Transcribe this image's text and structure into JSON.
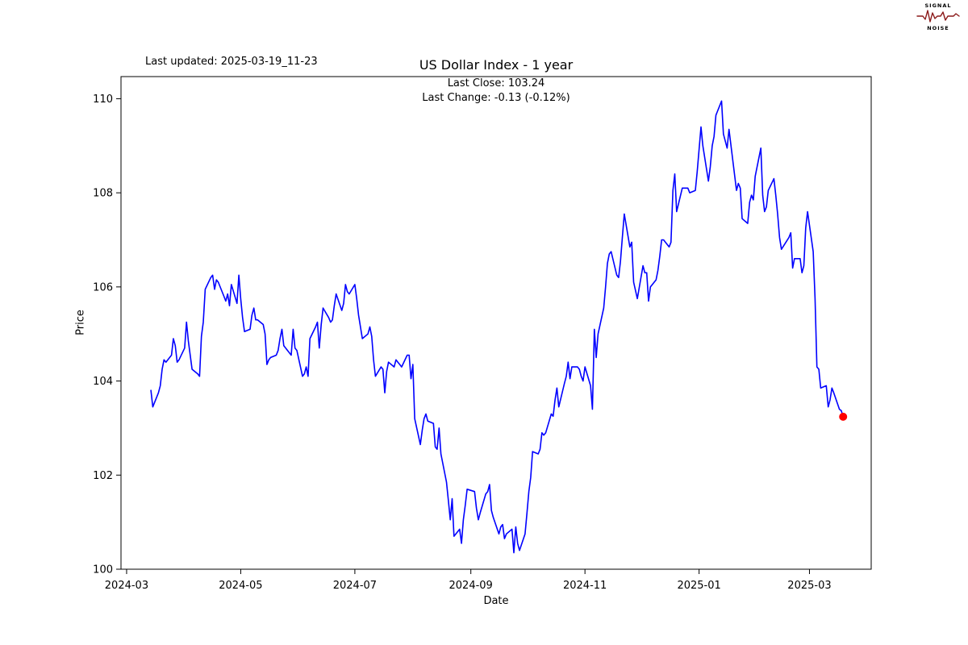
{
  "header": {
    "last_updated": "Last updated: 2025-03-19_11-23",
    "logo": {
      "top": "SIGNAL",
      "bottom": "NOISE",
      "color": "#8b1a1a"
    }
  },
  "chart_data": {
    "type": "line",
    "title": "US Dollar Index - 1 year",
    "annotations": [
      "Last Close: 103.24",
      "Last Change: -0.13 (-0.12%)"
    ],
    "xlabel": "Date",
    "ylabel": "Price",
    "ylim": [
      100,
      110.47
    ],
    "xlim": [
      "2024-02-27",
      "2025-04-03"
    ],
    "y_ticks": [
      100,
      102,
      104,
      106,
      108,
      110
    ],
    "x_ticks": [
      {
        "label": "2024-03",
        "date": "2024-03-01"
      },
      {
        "label": "2024-05",
        "date": "2024-05-01"
      },
      {
        "label": "2024-07",
        "date": "2024-07-01"
      },
      {
        "label": "2024-09",
        "date": "2024-09-01"
      },
      {
        "label": "2024-11",
        "date": "2024-11-01"
      },
      {
        "label": "2025-01",
        "date": "2025-01-01"
      },
      {
        "label": "2025-03",
        "date": "2025-03-01"
      }
    ],
    "grid": false,
    "legend": "none",
    "line_color": "#0000ff",
    "marker_color": "#ff0000",
    "last_close": 103.24,
    "last_change": -0.13,
    "last_change_pct": -0.12,
    "series": [
      {
        "name": "US Dollar Index",
        "points": [
          [
            "2024-03-14",
            103.8
          ],
          [
            "2024-03-15",
            103.45
          ],
          [
            "2024-03-18",
            103.75
          ],
          [
            "2024-03-19",
            103.9
          ],
          [
            "2024-03-20",
            104.25
          ],
          [
            "2024-03-21",
            104.45
          ],
          [
            "2024-03-22",
            104.4
          ],
          [
            "2024-03-25",
            104.55
          ],
          [
            "2024-03-26",
            104.9
          ],
          [
            "2024-03-27",
            104.75
          ],
          [
            "2024-03-28",
            104.4
          ],
          [
            "2024-03-29",
            104.45
          ],
          [
            "2024-04-01",
            104.7
          ],
          [
            "2024-04-02",
            105.25
          ],
          [
            "2024-04-03",
            104.85
          ],
          [
            "2024-04-04",
            104.55
          ],
          [
            "2024-04-05",
            104.25
          ],
          [
            "2024-04-08",
            104.15
          ],
          [
            "2024-04-09",
            104.1
          ],
          [
            "2024-04-10",
            104.95
          ],
          [
            "2024-04-11",
            105.25
          ],
          [
            "2024-04-12",
            105.95
          ],
          [
            "2024-04-15",
            106.2
          ],
          [
            "2024-04-16",
            106.25
          ],
          [
            "2024-04-17",
            105.95
          ],
          [
            "2024-04-18",
            106.15
          ],
          [
            "2024-04-19",
            106.1
          ],
          [
            "2024-04-22",
            105.8
          ],
          [
            "2024-04-23",
            105.7
          ],
          [
            "2024-04-24",
            105.85
          ],
          [
            "2024-04-25",
            105.6
          ],
          [
            "2024-04-26",
            106.05
          ],
          [
            "2024-04-29",
            105.65
          ],
          [
            "2024-04-30",
            106.25
          ],
          [
            "2024-05-01",
            105.75
          ],
          [
            "2024-05-02",
            105.35
          ],
          [
            "2024-05-03",
            105.05
          ],
          [
            "2024-05-06",
            105.1
          ],
          [
            "2024-05-07",
            105.4
          ],
          [
            "2024-05-08",
            105.55
          ],
          [
            "2024-05-09",
            105.3
          ],
          [
            "2024-05-10",
            105.3
          ],
          [
            "2024-05-13",
            105.2
          ],
          [
            "2024-05-14",
            105.0
          ],
          [
            "2024-05-15",
            104.35
          ],
          [
            "2024-05-16",
            104.45
          ],
          [
            "2024-05-17",
            104.5
          ],
          [
            "2024-05-20",
            104.55
          ],
          [
            "2024-05-21",
            104.65
          ],
          [
            "2024-05-22",
            104.9
          ],
          [
            "2024-05-23",
            105.1
          ],
          [
            "2024-05-24",
            104.75
          ],
          [
            "2024-05-28",
            104.55
          ],
          [
            "2024-05-29",
            105.1
          ],
          [
            "2024-05-30",
            104.7
          ],
          [
            "2024-05-31",
            104.65
          ],
          [
            "2024-06-03",
            104.1
          ],
          [
            "2024-06-04",
            104.15
          ],
          [
            "2024-06-05",
            104.3
          ],
          [
            "2024-06-06",
            104.1
          ],
          [
            "2024-06-07",
            104.9
          ],
          [
            "2024-06-10",
            105.15
          ],
          [
            "2024-06-11",
            105.25
          ],
          [
            "2024-06-12",
            104.7
          ],
          [
            "2024-06-13",
            105.2
          ],
          [
            "2024-06-14",
            105.55
          ],
          [
            "2024-06-17",
            105.35
          ],
          [
            "2024-06-18",
            105.25
          ],
          [
            "2024-06-19",
            105.3
          ],
          [
            "2024-06-20",
            105.6
          ],
          [
            "2024-06-21",
            105.85
          ],
          [
            "2024-06-24",
            105.5
          ],
          [
            "2024-06-25",
            105.65
          ],
          [
            "2024-06-26",
            106.05
          ],
          [
            "2024-06-27",
            105.9
          ],
          [
            "2024-06-28",
            105.85
          ],
          [
            "2024-07-01",
            106.05
          ],
          [
            "2024-07-02",
            105.75
          ],
          [
            "2024-07-03",
            105.4
          ],
          [
            "2024-07-05",
            104.9
          ],
          [
            "2024-07-08",
            105.0
          ],
          [
            "2024-07-09",
            105.15
          ],
          [
            "2024-07-10",
            104.95
          ],
          [
            "2024-07-11",
            104.45
          ],
          [
            "2024-07-12",
            104.1
          ],
          [
            "2024-07-15",
            104.3
          ],
          [
            "2024-07-16",
            104.25
          ],
          [
            "2024-07-17",
            103.75
          ],
          [
            "2024-07-18",
            104.2
          ],
          [
            "2024-07-19",
            104.4
          ],
          [
            "2024-07-22",
            104.3
          ],
          [
            "2024-07-23",
            104.45
          ],
          [
            "2024-07-24",
            104.4
          ],
          [
            "2024-07-25",
            104.35
          ],
          [
            "2024-07-26",
            104.3
          ],
          [
            "2024-07-29",
            104.55
          ],
          [
            "2024-07-30",
            104.55
          ],
          [
            "2024-07-31",
            104.05
          ],
          [
            "2024-08-01",
            104.35
          ],
          [
            "2024-08-02",
            103.2
          ],
          [
            "2024-08-05",
            102.65
          ],
          [
            "2024-08-06",
            102.95
          ],
          [
            "2024-08-07",
            103.2
          ],
          [
            "2024-08-08",
            103.3
          ],
          [
            "2024-08-09",
            103.15
          ],
          [
            "2024-08-12",
            103.1
          ],
          [
            "2024-08-13",
            102.6
          ],
          [
            "2024-08-14",
            102.55
          ],
          [
            "2024-08-15",
            103.0
          ],
          [
            "2024-08-16",
            102.45
          ],
          [
            "2024-08-19",
            101.85
          ],
          [
            "2024-08-20",
            101.45
          ],
          [
            "2024-08-21",
            101.05
          ],
          [
            "2024-08-22",
            101.5
          ],
          [
            "2024-08-23",
            100.7
          ],
          [
            "2024-08-26",
            100.85
          ],
          [
            "2024-08-27",
            100.55
          ],
          [
            "2024-08-28",
            101.05
          ],
          [
            "2024-08-29",
            101.35
          ],
          [
            "2024-08-30",
            101.7
          ],
          [
            "2024-09-03",
            101.65
          ],
          [
            "2024-09-04",
            101.3
          ],
          [
            "2024-09-05",
            101.05
          ],
          [
            "2024-09-06",
            101.2
          ],
          [
            "2024-09-09",
            101.6
          ],
          [
            "2024-09-10",
            101.65
          ],
          [
            "2024-09-11",
            101.8
          ],
          [
            "2024-09-12",
            101.25
          ],
          [
            "2024-09-13",
            101.1
          ],
          [
            "2024-09-16",
            100.75
          ],
          [
            "2024-09-17",
            100.9
          ],
          [
            "2024-09-18",
            100.95
          ],
          [
            "2024-09-19",
            100.65
          ],
          [
            "2024-09-20",
            100.75
          ],
          [
            "2024-09-23",
            100.85
          ],
          [
            "2024-09-24",
            100.35
          ],
          [
            "2024-09-25",
            100.9
          ],
          [
            "2024-09-26",
            100.55
          ],
          [
            "2024-09-27",
            100.4
          ],
          [
            "2024-09-30",
            100.75
          ],
          [
            "2024-10-01",
            101.2
          ],
          [
            "2024-10-02",
            101.65
          ],
          [
            "2024-10-03",
            101.95
          ],
          [
            "2024-10-04",
            102.5
          ],
          [
            "2024-10-07",
            102.45
          ],
          [
            "2024-10-08",
            102.55
          ],
          [
            "2024-10-09",
            102.9
          ],
          [
            "2024-10-10",
            102.85
          ],
          [
            "2024-10-11",
            102.9
          ],
          [
            "2024-10-14",
            103.3
          ],
          [
            "2024-10-15",
            103.25
          ],
          [
            "2024-10-16",
            103.6
          ],
          [
            "2024-10-17",
            103.85
          ],
          [
            "2024-10-18",
            103.45
          ],
          [
            "2024-10-21",
            103.95
          ],
          [
            "2024-10-22",
            104.1
          ],
          [
            "2024-10-23",
            104.4
          ],
          [
            "2024-10-24",
            104.05
          ],
          [
            "2024-10-25",
            104.3
          ],
          [
            "2024-10-28",
            104.3
          ],
          [
            "2024-10-29",
            104.25
          ],
          [
            "2024-10-30",
            104.1
          ],
          [
            "2024-10-31",
            104.0
          ],
          [
            "2024-11-01",
            104.3
          ],
          [
            "2024-11-04",
            103.9
          ],
          [
            "2024-11-05",
            103.4
          ],
          [
            "2024-11-06",
            105.1
          ],
          [
            "2024-11-07",
            104.5
          ],
          [
            "2024-11-08",
            105.0
          ],
          [
            "2024-11-11",
            105.55
          ],
          [
            "2024-11-12",
            106.0
          ],
          [
            "2024-11-13",
            106.5
          ],
          [
            "2024-11-14",
            106.7
          ],
          [
            "2024-11-15",
            106.75
          ],
          [
            "2024-11-18",
            106.25
          ],
          [
            "2024-11-19",
            106.2
          ],
          [
            "2024-11-20",
            106.55
          ],
          [
            "2024-11-21",
            107.05
          ],
          [
            "2024-11-22",
            107.55
          ],
          [
            "2024-11-25",
            106.85
          ],
          [
            "2024-11-26",
            106.95
          ],
          [
            "2024-11-27",
            106.1
          ],
          [
            "2024-11-29",
            105.75
          ],
          [
            "2024-12-02",
            106.45
          ],
          [
            "2024-12-03",
            106.3
          ],
          [
            "2024-12-04",
            106.3
          ],
          [
            "2024-12-05",
            105.7
          ],
          [
            "2024-12-06",
            106.0
          ],
          [
            "2024-12-09",
            106.15
          ],
          [
            "2024-12-10",
            106.35
          ],
          [
            "2024-12-11",
            106.65
          ],
          [
            "2024-12-12",
            107.0
          ],
          [
            "2024-12-13",
            107.0
          ],
          [
            "2024-12-16",
            106.85
          ],
          [
            "2024-12-17",
            106.95
          ],
          [
            "2024-12-18",
            108.05
          ],
          [
            "2024-12-19",
            108.4
          ],
          [
            "2024-12-20",
            107.6
          ],
          [
            "2024-12-23",
            108.1
          ],
          [
            "2024-12-24",
            108.1
          ],
          [
            "2024-12-26",
            108.1
          ],
          [
            "2024-12-27",
            108.0
          ],
          [
            "2024-12-30",
            108.05
          ],
          [
            "2024-12-31",
            108.45
          ],
          [
            "2025-01-02",
            109.4
          ],
          [
            "2025-01-03",
            109.0
          ],
          [
            "2025-01-06",
            108.25
          ],
          [
            "2025-01-07",
            108.55
          ],
          [
            "2025-01-08",
            109.0
          ],
          [
            "2025-01-09",
            109.2
          ],
          [
            "2025-01-10",
            109.65
          ],
          [
            "2025-01-13",
            109.95
          ],
          [
            "2025-01-14",
            109.25
          ],
          [
            "2025-01-15",
            109.1
          ],
          [
            "2025-01-16",
            108.95
          ],
          [
            "2025-01-17",
            109.35
          ],
          [
            "2025-01-21",
            108.05
          ],
          [
            "2025-01-22",
            108.2
          ],
          [
            "2025-01-23",
            108.1
          ],
          [
            "2025-01-24",
            107.45
          ],
          [
            "2025-01-27",
            107.35
          ],
          [
            "2025-01-28",
            107.8
          ],
          [
            "2025-01-29",
            107.95
          ],
          [
            "2025-01-30",
            107.85
          ],
          [
            "2025-01-31",
            108.35
          ],
          [
            "2025-02-03",
            108.95
          ],
          [
            "2025-02-04",
            107.95
          ],
          [
            "2025-02-05",
            107.6
          ],
          [
            "2025-02-06",
            107.7
          ],
          [
            "2025-02-07",
            108.05
          ],
          [
            "2025-02-10",
            108.3
          ],
          [
            "2025-02-11",
            107.95
          ],
          [
            "2025-02-12",
            107.55
          ],
          [
            "2025-02-13",
            107.05
          ],
          [
            "2025-02-14",
            106.8
          ],
          [
            "2025-02-18",
            107.05
          ],
          [
            "2025-02-19",
            107.15
          ],
          [
            "2025-02-20",
            106.4
          ],
          [
            "2025-02-21",
            106.6
          ],
          [
            "2025-02-24",
            106.6
          ],
          [
            "2025-02-25",
            106.3
          ],
          [
            "2025-02-26",
            106.45
          ],
          [
            "2025-02-27",
            107.25
          ],
          [
            "2025-02-28",
            107.6
          ],
          [
            "2025-03-03",
            106.75
          ],
          [
            "2025-03-04",
            105.75
          ],
          [
            "2025-03-05",
            104.3
          ],
          [
            "2025-03-06",
            104.25
          ],
          [
            "2025-03-07",
            103.85
          ],
          [
            "2025-03-10",
            103.9
          ],
          [
            "2025-03-11",
            103.45
          ],
          [
            "2025-03-12",
            103.6
          ],
          [
            "2025-03-13",
            103.85
          ],
          [
            "2025-03-14",
            103.75
          ],
          [
            "2025-03-17",
            103.4
          ],
          [
            "2025-03-18",
            103.37
          ],
          [
            "2025-03-19",
            103.24
          ]
        ]
      }
    ]
  }
}
